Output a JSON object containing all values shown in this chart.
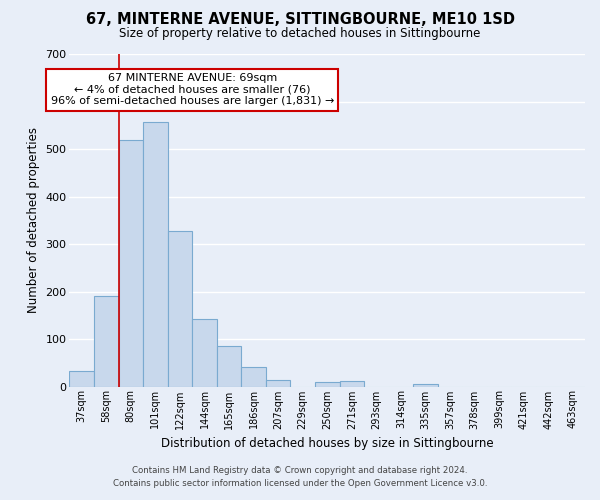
{
  "title": "67, MINTERNE AVENUE, SITTINGBOURNE, ME10 1SD",
  "subtitle": "Size of property relative to detached houses in Sittingbourne",
  "xlabel": "Distribution of detached houses by size in Sittingbourne",
  "ylabel": "Number of detached properties",
  "categories": [
    "37sqm",
    "58sqm",
    "80sqm",
    "101sqm",
    "122sqm",
    "144sqm",
    "165sqm",
    "186sqm",
    "207sqm",
    "229sqm",
    "250sqm",
    "271sqm",
    "293sqm",
    "314sqm",
    "335sqm",
    "357sqm",
    "378sqm",
    "399sqm",
    "421sqm",
    "442sqm",
    "463sqm"
  ],
  "values": [
    33,
    190,
    519,
    557,
    328,
    143,
    86,
    41,
    14,
    0,
    9,
    11,
    0,
    0,
    5,
    0,
    0,
    0,
    0,
    0,
    0
  ],
  "bar_color": "#c8d8ec",
  "bar_edge_color": "#7aaad0",
  "vline_color": "#cc0000",
  "vline_x": 1.5,
  "annotation_lines": [
    "67 MINTERNE AVENUE: 69sqm",
    "← 4% of detached houses are smaller (76)",
    "96% of semi-detached houses are larger (1,831) →"
  ],
  "annotation_box_facecolor": "#ffffff",
  "annotation_box_edgecolor": "#cc0000",
  "ylim": [
    0,
    700
  ],
  "yticks": [
    0,
    100,
    200,
    300,
    400,
    500,
    600,
    700
  ],
  "background_color": "#e8eef8",
  "plot_bg_color": "#e8eef8",
  "grid_color": "#ffffff",
  "footer_line1": "Contains HM Land Registry data © Crown copyright and database right 2024.",
  "footer_line2": "Contains public sector information licensed under the Open Government Licence v3.0."
}
